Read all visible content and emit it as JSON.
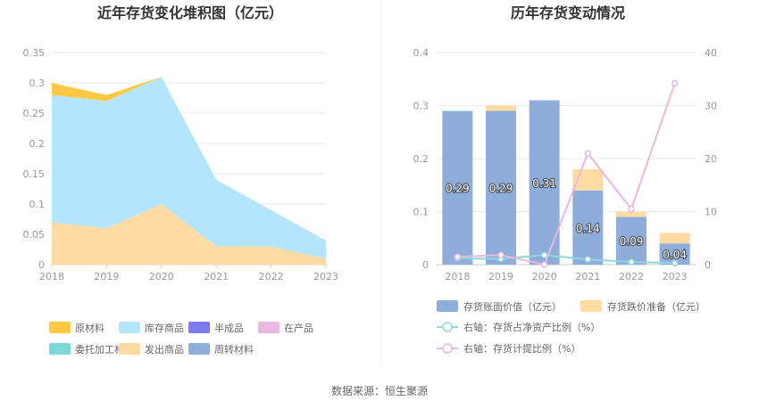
{
  "source_text": "数据来源：恒生聚源",
  "chart_data": [
    {
      "type": "area",
      "title": "近年存货变化堆积图（亿元）",
      "x": [
        "2018",
        "2019",
        "2020",
        "2021",
        "2022",
        "2023"
      ],
      "y_ticks": [
        "0",
        "0.05",
        "0.1",
        "0.15",
        "0.2",
        "0.25",
        "0.3",
        "0.35"
      ],
      "ylim": [
        0,
        0.35
      ],
      "grid": true,
      "legend_position": "bottom",
      "stack_order": [
        "发出商品",
        "库存商品",
        "原材料"
      ],
      "series": [
        {
          "name": "原材料",
          "color": "#FFC845",
          "values": [
            0.02,
            0.01,
            0.0,
            0.0,
            0.0,
            0.0
          ]
        },
        {
          "name": "库存商品",
          "color": "#B3E5FC",
          "values": [
            0.21,
            0.21,
            0.21,
            0.11,
            0.06,
            0.03
          ]
        },
        {
          "name": "半成品",
          "color": "#7B7BF5",
          "values": [
            0,
            0,
            0,
            0,
            0,
            0
          ]
        },
        {
          "name": "在产品",
          "color": "#E9B7DF",
          "values": [
            0,
            0,
            0,
            0,
            0,
            0
          ]
        },
        {
          "name": "委托加工材料",
          "color": "#7ED6D6",
          "values": [
            0,
            0,
            0,
            0,
            0,
            0
          ]
        },
        {
          "name": "发出商品",
          "color": "#FDDBA3",
          "values": [
            0.07,
            0.06,
            0.1,
            0.03,
            0.03,
            0.01
          ]
        },
        {
          "name": "周转材料",
          "color": "#8EADDB",
          "values": [
            0,
            0,
            0,
            0,
            0,
            0
          ]
        }
      ]
    },
    {
      "type": "bar",
      "title": "历年存货变动情况",
      "categories": [
        "2018",
        "2019",
        "2020",
        "2021",
        "2022",
        "2023"
      ],
      "y_left_ticks": [
        "0",
        "0.1",
        "0.2",
        "0.3",
        "0.4"
      ],
      "ylim_left": [
        0,
        0.4
      ],
      "y_right_ticks": [
        "0",
        "10",
        "20",
        "30",
        "40"
      ],
      "ylim_right": [
        0,
        40
      ],
      "grid": true,
      "legend_position": "bottom",
      "series": [
        {
          "name": "存货账面价值（亿元）",
          "kind": "bar",
          "color": "#8EADDB",
          "values": [
            0.29,
            0.29,
            0.31,
            0.14,
            0.09,
            0.04
          ],
          "labels": [
            "0.29",
            "0.29",
            "0.31",
            "0.14",
            "0.09",
            "0.04"
          ]
        },
        {
          "name": "存货跌价准备（亿元）",
          "kind": "bar",
          "color": "#FDDBA3",
          "values": [
            0.0,
            0.01,
            0.0,
            0.04,
            0.01,
            0.02
          ]
        },
        {
          "name": "右轴：存货占净资产比例（%）",
          "kind": "line",
          "axis": "right",
          "color": "#8ED8DC",
          "values": [
            1.2,
            1.1,
            1.8,
            1.0,
            0.5,
            0.3
          ]
        },
        {
          "name": "右轴：存货计提比例（%）",
          "kind": "line",
          "axis": "right",
          "color": "#E9B7DF",
          "values": [
            1.5,
            1.8,
            0.0,
            21.0,
            10.5,
            34.2
          ]
        }
      ]
    }
  ]
}
